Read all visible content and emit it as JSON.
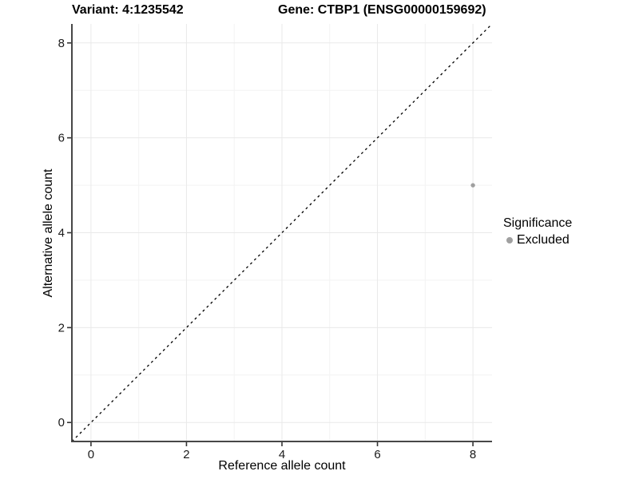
{
  "header": {
    "variant_title": "Variant: 4:1235542",
    "gene_title": "Gene: CTBP1 (ENSG00000159692)"
  },
  "legend": {
    "title": "Significance",
    "items": [
      {
        "label": "Excluded",
        "color": "#a0a0a0"
      }
    ]
  },
  "colors": {
    "background": "#ffffff",
    "grid_major": "#e9e9e9",
    "grid_minor": "#f3f3f3",
    "axis_line": "#474747",
    "tick_mark": "#333333",
    "tick_label": "#1a1a1a",
    "identity_line": "#000000",
    "point_excluded": "#a0a0a0"
  },
  "chart_data": {
    "type": "scatter",
    "title": "Variant: 4:1235542    Gene: CTBP1 (ENSG00000159692)",
    "xlabel": "Reference allele count",
    "ylabel": "Alternative allele count",
    "xlim": [
      -0.4,
      8.4
    ],
    "ylim": [
      -0.4,
      8.4
    ],
    "x_ticks": [
      0,
      2,
      4,
      6,
      8
    ],
    "y_ticks": [
      0,
      2,
      4,
      6,
      8
    ],
    "x_minor": [
      1,
      3,
      5,
      7
    ],
    "y_minor": [
      1,
      3,
      5,
      7
    ],
    "grid": true,
    "legend_position": "right",
    "reference_line": {
      "kind": "identity",
      "slope": 1,
      "intercept": 0,
      "style": "dashed",
      "color": "#000000"
    },
    "series": [
      {
        "name": "Excluded",
        "color": "#a0a0a0",
        "points": [
          {
            "x": 8,
            "y": 5
          }
        ]
      }
    ]
  }
}
